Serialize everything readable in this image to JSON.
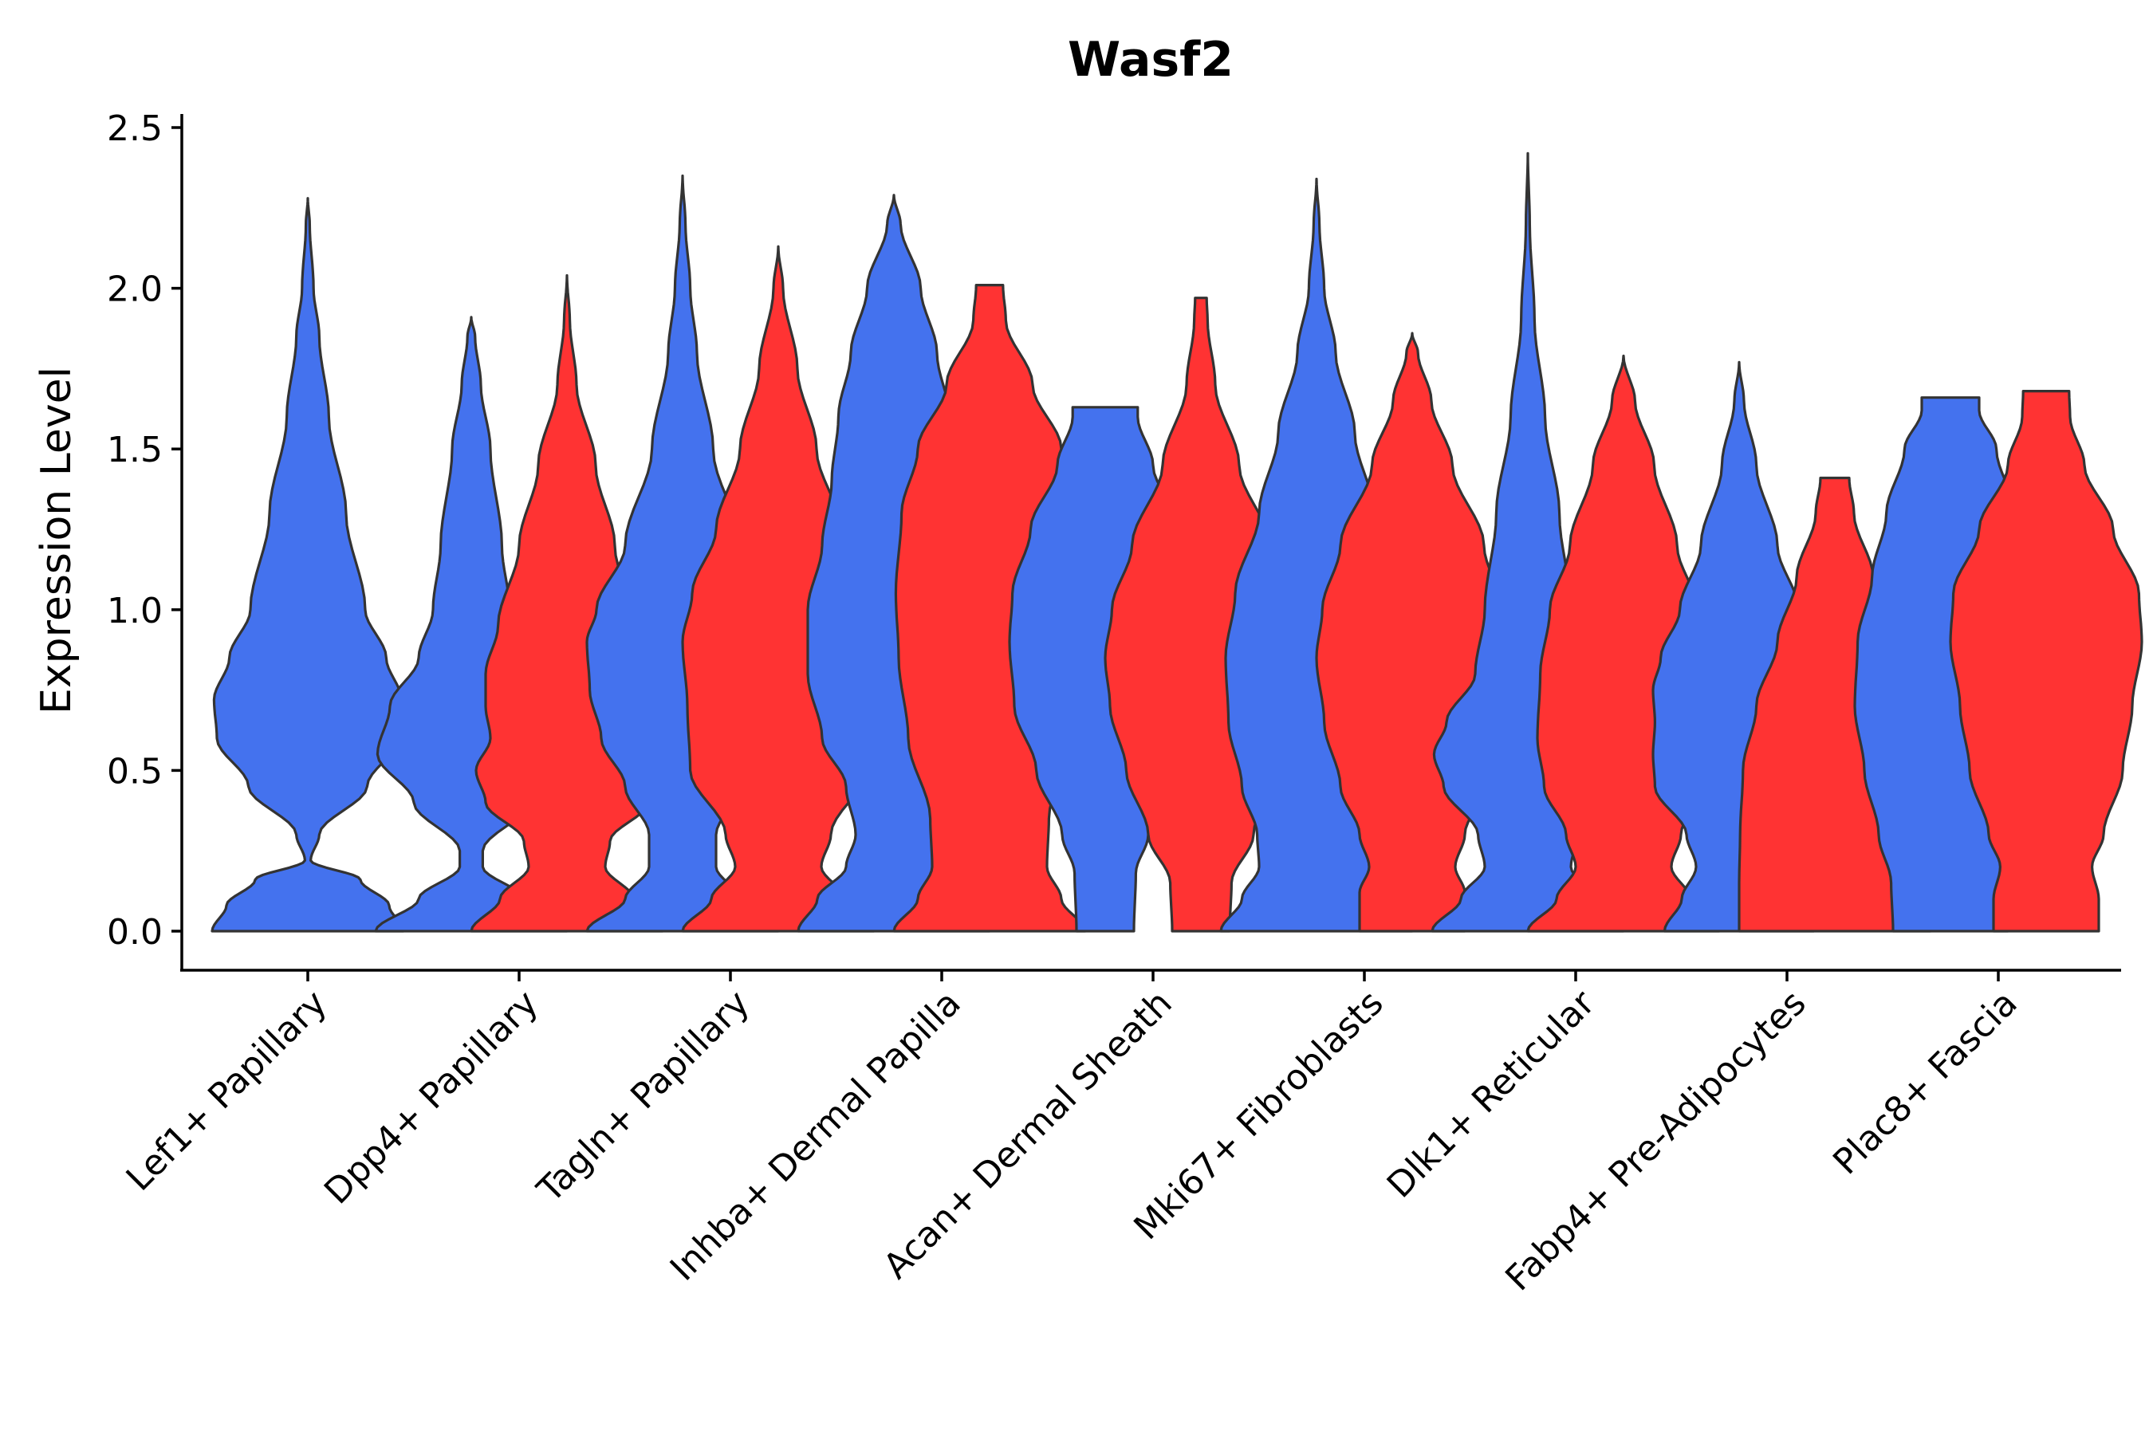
{
  "chart_data": {
    "type": "violin",
    "title": "Wasf2",
    "xlabel": "",
    "ylabel": "Expression Level",
    "ylim": [
      -0.12,
      2.55
    ],
    "yticks": [
      "0.0",
      "0.5",
      "1.0",
      "1.5",
      "2.0",
      "2.5"
    ],
    "ytick_values": [
      0,
      0.5,
      1.0,
      1.5,
      2.0,
      2.5
    ],
    "grid": false,
    "legend": "none",
    "series": [
      {
        "name": "group-1",
        "color": "#4472EE"
      },
      {
        "name": "group-2",
        "color": "#FF3333"
      }
    ],
    "categories": [
      {
        "label": "Lef1+ Papillary",
        "violins": [
          {
            "series": 0,
            "max": 2.28,
            "profile": [
              [
                0,
                1.0
              ],
              [
                0.08,
                0.85
              ],
              [
                0.16,
                0.55
              ],
              [
                0.22,
                0.03
              ],
              [
                0.3,
                0.12
              ],
              [
                0.45,
                0.62
              ],
              [
                0.6,
                0.95
              ],
              [
                0.72,
                0.98
              ],
              [
                0.85,
                0.82
              ],
              [
                1.0,
                0.6
              ],
              [
                1.3,
                0.4
              ],
              [
                1.6,
                0.22
              ],
              [
                1.85,
                0.12
              ],
              [
                2.0,
                0.06
              ],
              [
                2.2,
                0.02
              ],
              [
                2.28,
                0.0
              ]
            ]
          }
        ]
      },
      {
        "label": "Dpp4+ Papillary",
        "violins": [
          {
            "series": 0,
            "max": 1.91,
            "profile": [
              [
                0,
                1.0
              ],
              [
                0.1,
                0.55
              ],
              [
                0.2,
                0.12
              ],
              [
                0.25,
                0.12
              ],
              [
                0.4,
                0.6
              ],
              [
                0.55,
                0.98
              ],
              [
                0.7,
                0.85
              ],
              [
                0.85,
                0.55
              ],
              [
                1.0,
                0.4
              ],
              [
                1.2,
                0.32
              ],
              [
                1.5,
                0.2
              ],
              [
                1.7,
                0.1
              ],
              [
                1.85,
                0.04
              ],
              [
                1.91,
                0.0
              ]
            ]
          },
          {
            "series": 1,
            "max": 2.04,
            "profile": [
              [
                0,
                1.0
              ],
              [
                0.1,
                0.7
              ],
              [
                0.2,
                0.4
              ],
              [
                0.28,
                0.45
              ],
              [
                0.4,
                0.85
              ],
              [
                0.5,
                0.95
              ],
              [
                0.6,
                0.8
              ],
              [
                0.7,
                0.85
              ],
              [
                0.8,
                0.85
              ],
              [
                0.95,
                0.72
              ],
              [
                1.2,
                0.5
              ],
              [
                1.45,
                0.3
              ],
              [
                1.7,
                0.1
              ],
              [
                1.9,
                0.03
              ],
              [
                2.04,
                0.0
              ]
            ]
          }
        ]
      },
      {
        "label": "Tagln+ Papillary",
        "violins": [
          {
            "series": 0,
            "max": 2.35,
            "profile": [
              [
                0,
                1.0
              ],
              [
                0.1,
                0.6
              ],
              [
                0.2,
                0.35
              ],
              [
                0.3,
                0.35
              ],
              [
                0.45,
                0.6
              ],
              [
                0.6,
                0.85
              ],
              [
                0.75,
                0.97
              ],
              [
                0.9,
                1.0
              ],
              [
                1.0,
                0.9
              ],
              [
                1.2,
                0.6
              ],
              [
                1.5,
                0.32
              ],
              [
                1.8,
                0.15
              ],
              [
                2.0,
                0.08
              ],
              [
                2.2,
                0.03
              ],
              [
                2.35,
                0.0
              ]
            ]
          },
          {
            "series": 1,
            "max": 2.13,
            "profile": [
              [
                0,
                1.0
              ],
              [
                0.1,
                0.7
              ],
              [
                0.2,
                0.45
              ],
              [
                0.3,
                0.55
              ],
              [
                0.5,
                0.92
              ],
              [
                0.7,
                0.95
              ],
              [
                0.9,
                1.0
              ],
              [
                1.05,
                0.9
              ],
              [
                1.25,
                0.65
              ],
              [
                1.5,
                0.4
              ],
              [
                1.75,
                0.2
              ],
              [
                2.0,
                0.05
              ],
              [
                2.13,
                0.0
              ]
            ]
          }
        ]
      },
      {
        "label": "Inhba+ Dermal Papilla",
        "violins": [
          {
            "series": 0,
            "max": 2.29,
            "profile": [
              [
                0,
                1.0
              ],
              [
                0.1,
                0.8
              ],
              [
                0.2,
                0.5
              ],
              [
                0.3,
                0.4
              ],
              [
                0.45,
                0.5
              ],
              [
                0.6,
                0.75
              ],
              [
                0.8,
                0.9
              ],
              [
                1.0,
                0.9
              ],
              [
                1.2,
                0.75
              ],
              [
                1.4,
                0.65
              ],
              [
                1.6,
                0.58
              ],
              [
                1.8,
                0.45
              ],
              [
                2.0,
                0.28
              ],
              [
                2.2,
                0.07
              ],
              [
                2.29,
                0.0
              ]
            ]
          },
          {
            "series": 1,
            "max": 2.01,
            "profile": [
              [
                0,
                1.0
              ],
              [
                0.1,
                0.75
              ],
              [
                0.2,
                0.6
              ],
              [
                0.35,
                0.62
              ],
              [
                0.6,
                0.85
              ],
              [
                0.85,
                0.95
              ],
              [
                1.05,
                0.98
              ],
              [
                1.3,
                0.92
              ],
              [
                1.5,
                0.75
              ],
              [
                1.7,
                0.45
              ],
              [
                1.9,
                0.17
              ],
              [
                2.01,
                0.14
              ]
            ]
          }
        ]
      },
      {
        "label": "Acan+ Dermal Sheath",
        "violins": [
          {
            "series": 0,
            "max": 1.63,
            "profile": [
              [
                0,
                0.3
              ],
              [
                0.18,
                0.32
              ],
              [
                0.3,
                0.45
              ],
              [
                0.5,
                0.72
              ],
              [
                0.7,
                0.95
              ],
              [
                0.9,
                1.0
              ],
              [
                1.05,
                0.97
              ],
              [
                1.25,
                0.78
              ],
              [
                1.45,
                0.5
              ],
              [
                1.6,
                0.34
              ],
              [
                1.63,
                0.34
              ]
            ]
          },
          {
            "series": 1,
            "max": 1.97,
            "profile": [
              [
                0,
                0.3
              ],
              [
                0.15,
                0.32
              ],
              [
                0.3,
                0.55
              ],
              [
                0.5,
                0.78
              ],
              [
                0.7,
                0.95
              ],
              [
                0.85,
                1.0
              ],
              [
                1.0,
                0.93
              ],
              [
                1.2,
                0.72
              ],
              [
                1.45,
                0.4
              ],
              [
                1.7,
                0.15
              ],
              [
                1.9,
                0.07
              ],
              [
                1.97,
                0.06
              ]
            ]
          }
        ]
      },
      {
        "label": "Mki67+ Fibroblasts",
        "violins": [
          {
            "series": 0,
            "max": 2.34,
            "profile": [
              [
                0,
                1.0
              ],
              [
                0.1,
                0.78
              ],
              [
                0.2,
                0.6
              ],
              [
                0.3,
                0.62
              ],
              [
                0.45,
                0.78
              ],
              [
                0.65,
                0.92
              ],
              [
                0.85,
                0.95
              ],
              [
                1.05,
                0.85
              ],
              [
                1.3,
                0.6
              ],
              [
                1.55,
                0.4
              ],
              [
                1.8,
                0.2
              ],
              [
                2.0,
                0.08
              ],
              [
                2.2,
                0.03
              ],
              [
                2.34,
                0.0
              ]
            ]
          },
          {
            "series": 1,
            "max": 1.86,
            "profile": [
              [
                0,
                0.55
              ],
              [
                0.12,
                0.55
              ],
              [
                0.2,
                0.45
              ],
              [
                0.3,
                0.55
              ],
              [
                0.45,
                0.75
              ],
              [
                0.65,
                0.92
              ],
              [
                0.85,
                1.0
              ],
              [
                1.0,
                0.94
              ],
              [
                1.2,
                0.75
              ],
              [
                1.45,
                0.42
              ],
              [
                1.65,
                0.2
              ],
              [
                1.8,
                0.06
              ],
              [
                1.86,
                0.0
              ]
            ]
          }
        ]
      },
      {
        "label": "Dlk1+ Reticular",
        "violins": [
          {
            "series": 0,
            "max": 2.42,
            "profile": [
              [
                0,
                1.0
              ],
              [
                0.1,
                0.7
              ],
              [
                0.2,
                0.45
              ],
              [
                0.3,
                0.52
              ],
              [
                0.45,
                0.88
              ],
              [
                0.55,
                0.98
              ],
              [
                0.65,
                0.85
              ],
              [
                0.8,
                0.55
              ],
              [
                1.0,
                0.45
              ],
              [
                1.3,
                0.33
              ],
              [
                1.6,
                0.18
              ],
              [
                1.9,
                0.07
              ],
              [
                2.2,
                0.02
              ],
              [
                2.42,
                0.0
              ]
            ]
          },
          {
            "series": 1,
            "max": 1.79,
            "profile": [
              [
                0,
                1.0
              ],
              [
                0.1,
                0.7
              ],
              [
                0.2,
                0.5
              ],
              [
                0.3,
                0.6
              ],
              [
                0.45,
                0.83
              ],
              [
                0.6,
                0.9
              ],
              [
                0.8,
                0.87
              ],
              [
                1.0,
                0.77
              ],
              [
                1.2,
                0.56
              ],
              [
                1.45,
                0.32
              ],
              [
                1.65,
                0.12
              ],
              [
                1.79,
                0.0
              ]
            ]
          }
        ]
      },
      {
        "label": "Fabp4+ Pre-Adipocytes",
        "violins": [
          {
            "series": 0,
            "max": 1.77,
            "profile": [
              [
                0,
                0.78
              ],
              [
                0.1,
                0.6
              ],
              [
                0.2,
                0.45
              ],
              [
                0.3,
                0.55
              ],
              [
                0.45,
                0.88
              ],
              [
                0.55,
                0.9
              ],
              [
                0.65,
                0.88
              ],
              [
                0.75,
                0.9
              ],
              [
                0.85,
                0.82
              ],
              [
                1.0,
                0.62
              ],
              [
                1.2,
                0.4
              ],
              [
                1.45,
                0.18
              ],
              [
                1.65,
                0.05
              ],
              [
                1.77,
                0.0
              ]
            ]
          },
          {
            "series": 1,
            "max": 1.41,
            "profile": [
              [
                0,
                1.0
              ],
              [
                0.15,
                1.0
              ],
              [
                0.3,
                0.99
              ],
              [
                0.5,
                0.96
              ],
              [
                0.7,
                0.82
              ],
              [
                0.9,
                0.6
              ],
              [
                1.1,
                0.4
              ],
              [
                1.3,
                0.2
              ],
              [
                1.41,
                0.15
              ]
            ]
          }
        ]
      },
      {
        "label": "Plac8+ Fascia",
        "violins": [
          {
            "series": 0,
            "max": 1.66,
            "profile": [
              [
                0,
                0.6
              ],
              [
                0.15,
                0.62
              ],
              [
                0.3,
                0.75
              ],
              [
                0.5,
                0.9
              ],
              [
                0.7,
                1.0
              ],
              [
                0.9,
                0.97
              ],
              [
                1.1,
                0.82
              ],
              [
                1.3,
                0.67
              ],
              [
                1.5,
                0.48
              ],
              [
                1.62,
                0.3
              ],
              [
                1.66,
                0.3
              ]
            ]
          },
          {
            "series": 1,
            "max": 1.68,
            "profile": [
              [
                0,
                0.55
              ],
              [
                0.1,
                0.55
              ],
              [
                0.2,
                0.48
              ],
              [
                0.3,
                0.6
              ],
              [
                0.5,
                0.8
              ],
              [
                0.7,
                0.9
              ],
              [
                0.9,
                1.0
              ],
              [
                1.05,
                0.97
              ],
              [
                1.25,
                0.7
              ],
              [
                1.45,
                0.4
              ],
              [
                1.6,
                0.25
              ],
              [
                1.68,
                0.24
              ]
            ]
          }
        ]
      }
    ]
  }
}
